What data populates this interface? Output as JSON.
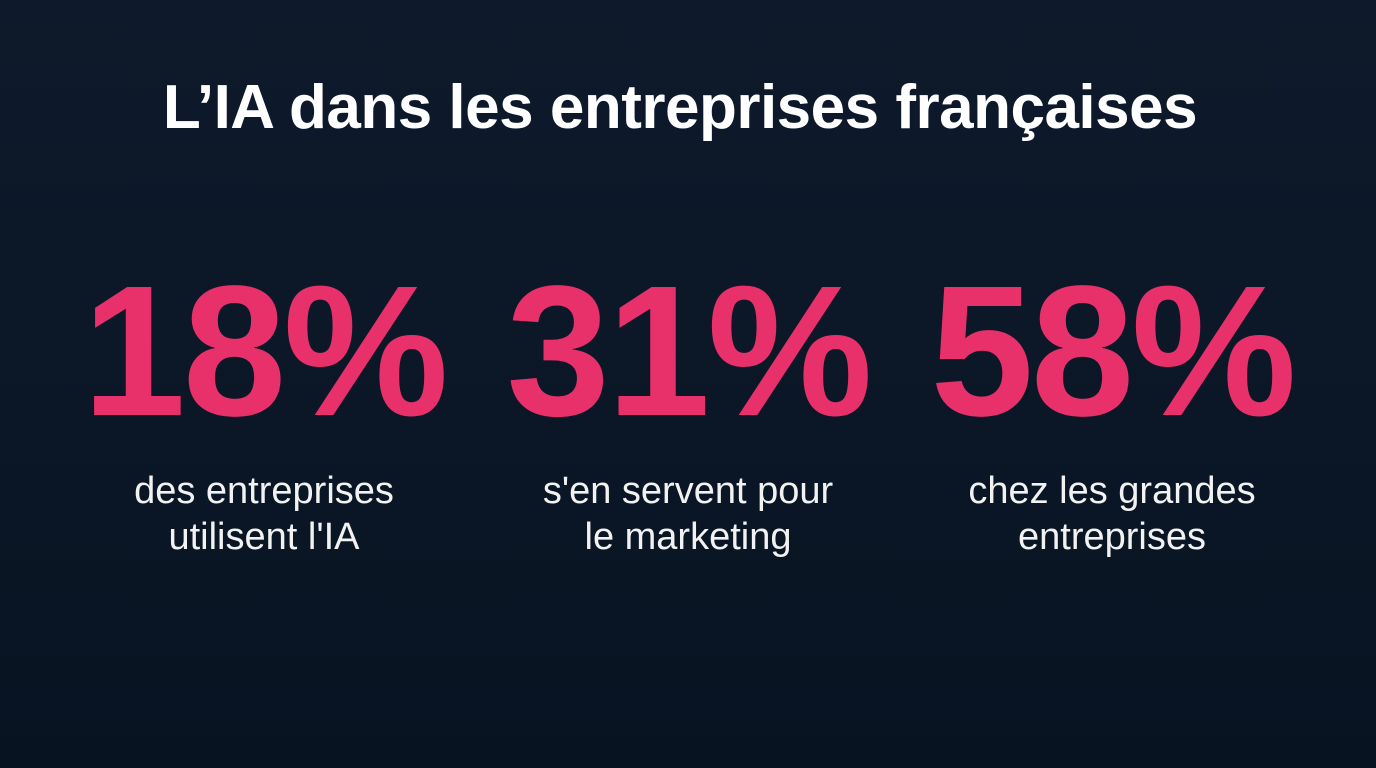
{
  "title": "L’IA dans les entreprises françaises",
  "accent_color": "#e8306a",
  "background_color": "#0c1628",
  "stats": [
    {
      "value": "18%",
      "description": [
        "des entreprises",
        "utilisent l'IA"
      ]
    },
    {
      "value": "31%",
      "description": [
        "s'en servent pour",
        "le marketing"
      ]
    },
    {
      "value": "58%",
      "description": [
        "chez les grandes",
        "entreprises"
      ]
    }
  ]
}
